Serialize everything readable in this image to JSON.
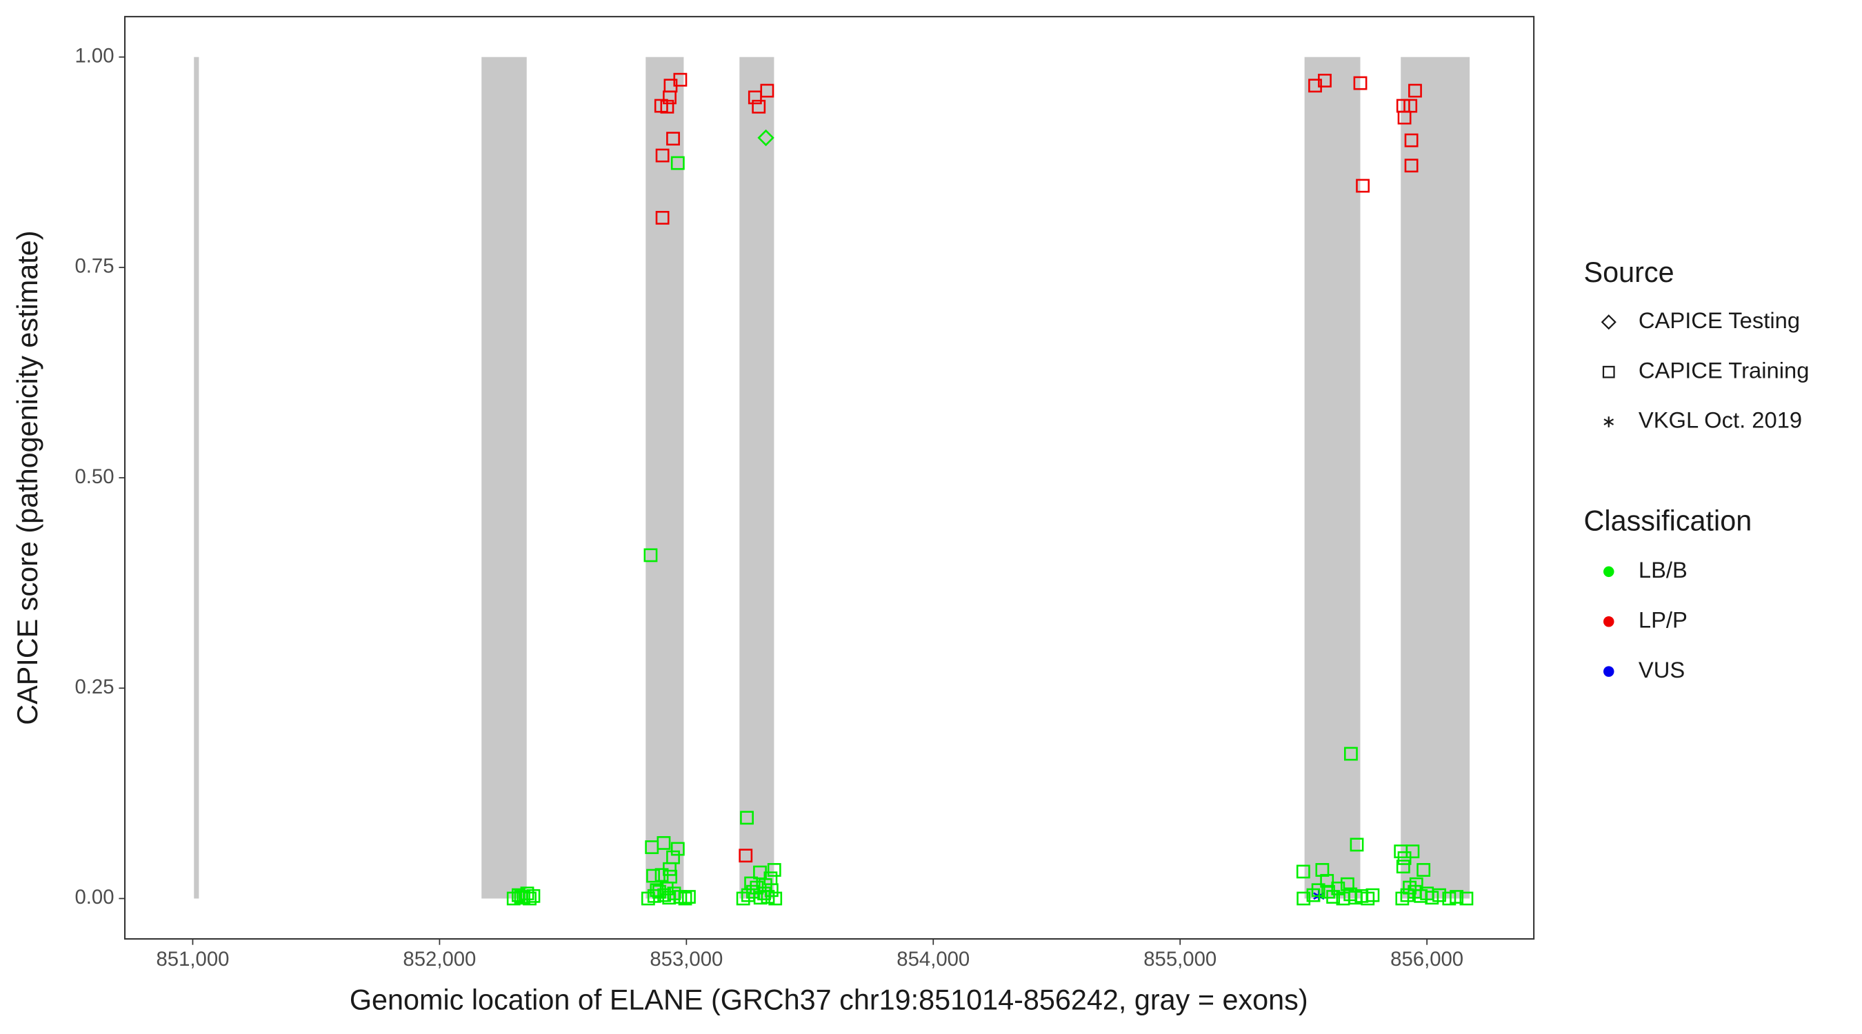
{
  "chart_data": {
    "type": "scatter",
    "x_label": "Genomic location of ELANE (GRCh37 chr19:851014-856242, gray = exons)",
    "y_label": "CAPICE score (pathogenicity estimate)",
    "xlim": [
      850725,
      856433
    ],
    "ylim": [
      -0.048,
      1.048
    ],
    "xticks": [
      {
        "value": 851000,
        "label": "851,000"
      },
      {
        "value": 852000,
        "label": "852,000"
      },
      {
        "value": 853000,
        "label": "853,000"
      },
      {
        "value": 854000,
        "label": "854,000"
      },
      {
        "value": 855000,
        "label": "855,000"
      },
      {
        "value": 856000,
        "label": "856,000"
      }
    ],
    "yticks": [
      {
        "value": 0,
        "label": "0.00"
      },
      {
        "value": 0.25,
        "label": "0.25"
      },
      {
        "value": 0.5,
        "label": "0.50"
      },
      {
        "value": 0.75,
        "label": "0.75"
      },
      {
        "value": 1,
        "label": "1.00"
      }
    ],
    "exon_color": "#c8c8c8",
    "exons": [
      [
        851005,
        851025
      ],
      [
        852170,
        852353
      ],
      [
        852835,
        852989
      ],
      [
        853215,
        853355
      ],
      [
        855504,
        855730
      ],
      [
        855894,
        856173
      ]
    ],
    "shape_legend": {
      "title": "Source",
      "items": [
        {
          "name": "CAPICE Testing",
          "shape": "diamond"
        },
        {
          "name": "CAPICE Training",
          "shape": "square"
        },
        {
          "name": "VKGL Oct. 2019",
          "shape": "asterisk"
        }
      ]
    },
    "color_legend": {
      "title": "Classification",
      "items": [
        {
          "name": "LB/B",
          "color": "#00ee00"
        },
        {
          "name": "LP/P",
          "color": "#ee0000"
        },
        {
          "name": "VUS",
          "color": "#0000ee"
        }
      ]
    },
    "series": [
      {
        "source": "CAPICE Training",
        "classification": "LP/P",
        "x": [
          852975,
          852936,
          852932,
          852898,
          852922,
          852946,
          852903,
          852903,
          853278,
          853327,
          853293,
          853240,
          855547,
          855586,
          855730,
          855740,
          855904,
          855933,
          855909,
          855952,
          855937,
          855937
        ],
        "y": [
          0.973,
          0.966,
          0.952,
          0.942,
          0.941,
          0.903,
          0.883,
          0.809,
          0.952,
          0.96,
          0.941,
          0.051,
          0.966,
          0.972,
          0.969,
          0.847,
          0.942,
          0.942,
          0.928,
          0.96,
          0.901,
          0.871
        ]
      },
      {
        "source": "CAPICE Testing",
        "classification": "LB/B",
        "x": [
          853322
        ],
        "y": [
          0.904
        ]
      },
      {
        "source": "VKGL Oct. 2019",
        "classification": "VUS",
        "x": [
          855562
        ],
        "y": [
          0.003
        ]
      },
      {
        "source": "CAPICE Training",
        "classification": "LB/B",
        "x": [
          852300,
          852330,
          852355,
          852340,
          852365,
          852380,
          852320,
          852855,
          852965,
          852908,
          852860,
          852965,
          852946,
          852932,
          852865,
          852900,
          852935,
          852845,
          852870,
          852890,
          852910,
          852930,
          852950,
          852975,
          852995,
          853010,
          852880,
          852920,
          853245,
          853356,
          853298,
          853341,
          853230,
          853250,
          853270,
          853285,
          853300,
          853315,
          853330,
          853345,
          853360,
          853262,
          853320,
          855692,
          855716,
          855499,
          855576,
          855595,
          855678,
          855500,
          855540,
          855600,
          855620,
          855640,
          855660,
          855690,
          855710,
          855735,
          855760,
          855780,
          855560,
          855894,
          855942,
          855909,
          855904,
          855986,
          855957,
          855900,
          855920,
          855950,
          855975,
          856000,
          856020,
          856050,
          856090,
          856120,
          856160,
          855930
        ],
        "y": [
          0,
          0.002,
          0.006,
          0.001,
          0,
          0.003,
          0.004,
          0.408,
          0.874,
          0.066,
          0.061,
          0.059,
          0.049,
          0.035,
          0.027,
          0.028,
          0.026,
          0,
          0.003,
          0.008,
          0.004,
          0.001,
          0.006,
          0.002,
          0,
          0.002,
          0.01,
          0.012,
          0.096,
          0.034,
          0.031,
          0.024,
          0,
          0.004,
          0.008,
          0.013,
          0.001,
          0.006,
          0.002,
          0.01,
          0,
          0.018,
          0.016,
          0.172,
          0.064,
          0.032,
          0.034,
          0.021,
          0.017,
          0,
          0.004,
          0.008,
          0.002,
          0.012,
          0,
          0.005,
          0.001,
          0.003,
          0,
          0.004,
          0.01,
          0.056,
          0.056,
          0.048,
          0.038,
          0.034,
          0.017,
          0,
          0.004,
          0.008,
          0.003,
          0.006,
          0.001,
          0.004,
          0,
          0.002,
          0,
          0.013
        ]
      }
    ]
  }
}
